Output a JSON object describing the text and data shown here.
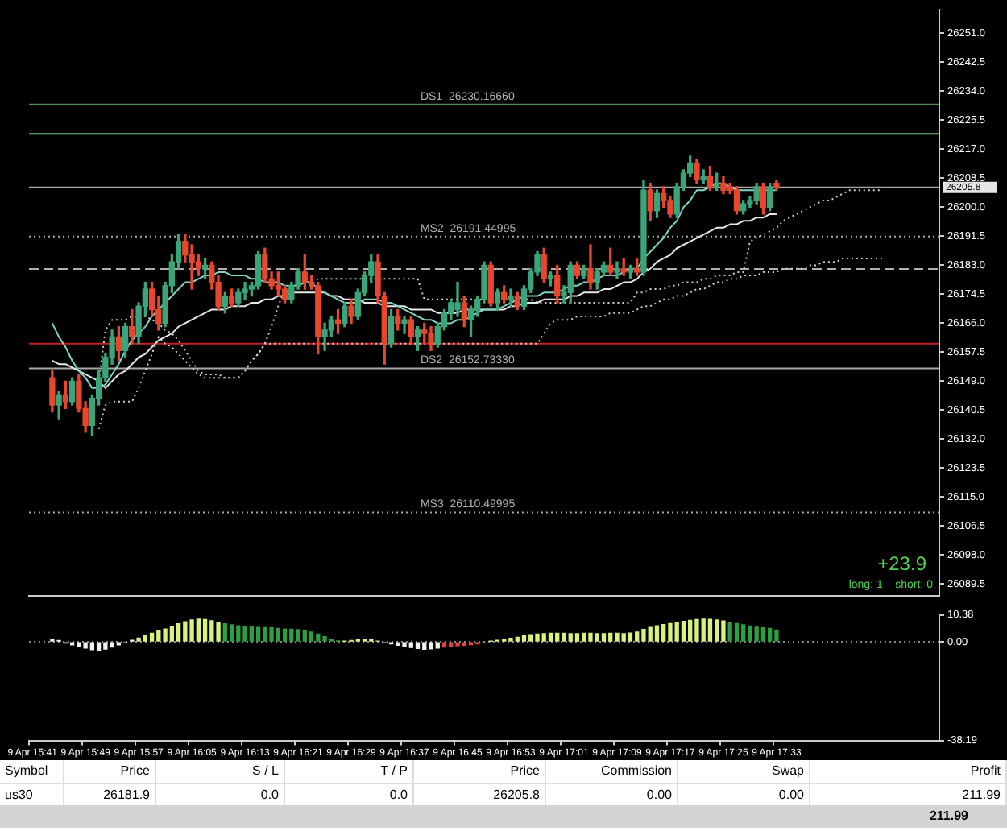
{
  "chart_data": [
    {
      "type": "candlestick",
      "tick_labels": "y",
      "ylim": [
        26086,
        26258
      ],
      "yticks": [
        {
          "value": 26251,
          "label": "26251.0"
        },
        26242.5,
        {
          "value": 26234,
          "label": "26234.0"
        },
        26225.5,
        {
          "value": 26217,
          "label": "26217.0"
        },
        26208.5,
        {
          "value": 26200,
          "label": "26200.0"
        },
        26191.5,
        {
          "value": 26183,
          "label": "26183.0"
        },
        26174.5,
        {
          "value": 26166,
          "label": "26166.0"
        },
        26157.5,
        {
          "value": 26149,
          "label": "26149.0"
        },
        26140.5,
        {
          "value": 26132,
          "label": "26132.0"
        },
        26123.5,
        {
          "value": 26115,
          "label": "26115.0"
        },
        26106.5,
        {
          "value": 26098,
          "label": "26098.0"
        },
        26089.5
      ],
      "categories": [
        null,
        null,
        null,
        null,
        null,
        null,
        null,
        null,
        null,
        null,
        null,
        null,
        null,
        null,
        null,
        null,
        null,
        null,
        null,
        null,
        null,
        null,
        null,
        null,
        null,
        null,
        null,
        null,
        null,
        null,
        null,
        null,
        null,
        null,
        null,
        null,
        null,
        null,
        null,
        null,
        null,
        null,
        null,
        null,
        null,
        null,
        null,
        null,
        null,
        null,
        null,
        null,
        null,
        null,
        null,
        null,
        null,
        null,
        null,
        null,
        null,
        null,
        null,
        null,
        null,
        null,
        null,
        null,
        null,
        null,
        null,
        null,
        null,
        null,
        null,
        null,
        null,
        null,
        null,
        null,
        null,
        null,
        null,
        null,
        null,
        null,
        null,
        null,
        null,
        null,
        null,
        null,
        null,
        null,
        null,
        null,
        null,
        null,
        null,
        null,
        null,
        null,
        null,
        null,
        null,
        null,
        null,
        null,
        null,
        null,
        null,
        null,
        null,
        null,
        null,
        null,
        null,
        null,
        null,
        null,
        null,
        null,
        null,
        null,
        null,
        null,
        null,
        null,
        null,
        null,
        null,
        null,
        null,
        null,
        null,
        null,
        null
      ],
      "ohlc": [
        null,
        null,
        null,
        [
          26150,
          26152,
          26140,
          26142
        ],
        [
          26142,
          26146,
          26138,
          26145
        ],
        [
          26145,
          26149,
          26141,
          26143
        ],
        [
          26143,
          26150,
          26142,
          26149
        ],
        [
          26149,
          26151,
          26140,
          26141
        ],
        [
          26141,
          26143,
          26134,
          26136
        ],
        [
          26136,
          26145,
          26133,
          26144
        ],
        [
          26144,
          26152,
          26142,
          26150
        ],
        [
          26150,
          26157,
          26149,
          26156
        ],
        [
          26156,
          26164,
          26154,
          26162
        ],
        [
          26162,
          26165,
          26155,
          26158
        ],
        [
          26158,
          26166,
          26156,
          26165
        ],
        [
          26165,
          26170,
          26160,
          26162
        ],
        [
          26162,
          26172,
          26160,
          26171
        ],
        [
          26171,
          26178,
          26168,
          26176
        ],
        [
          26176,
          26178,
          26168,
          26170
        ],
        [
          26170,
          26174,
          26164,
          26166
        ],
        [
          26166,
          26178,
          26165,
          26177
        ],
        [
          26177,
          26186,
          26175,
          26184
        ],
        [
          26184,
          26192,
          26182,
          26190
        ],
        [
          26190,
          26192,
          26184,
          26186
        ],
        [
          26186,
          26189,
          26176,
          26184
        ],
        [
          26184,
          26186,
          26180,
          26182
        ],
        [
          26182,
          26185,
          26179,
          26183
        ],
        [
          26183,
          26184,
          26176,
          26178
        ],
        [
          26178,
          26180,
          26170,
          26171
        ],
        [
          26171,
          26175,
          26169,
          26174
        ],
        [
          26174,
          26176,
          26171,
          26172
        ],
        [
          26172,
          26176,
          26171,
          26175
        ],
        [
          26175,
          26178,
          26173,
          26176
        ],
        [
          26176,
          26178,
          26174,
          26177
        ],
        [
          26177,
          26187,
          26176,
          26186
        ],
        [
          26186,
          26188,
          26178,
          26179
        ],
        [
          26179,
          26181,
          26176,
          26177
        ],
        [
          26177,
          26181,
          26174,
          26176
        ],
        [
          26176,
          26177,
          26172,
          26173
        ],
        [
          26173,
          26178,
          26172,
          26177
        ],
        [
          26177,
          26182,
          26176,
          26181
        ],
        [
          26181,
          26186,
          26176,
          26178
        ],
        [
          26178,
          26180,
          26176,
          26177
        ],
        [
          26177,
          26178,
          26157,
          26162
        ],
        [
          26162,
          26166,
          26158,
          26164
        ],
        [
          26164,
          26168,
          26162,
          26167
        ],
        [
          26167,
          26170,
          26163,
          26166
        ],
        [
          26166,
          26172,
          26165,
          26171
        ],
        [
          26171,
          26173,
          26166,
          26168
        ],
        [
          26168,
          26176,
          26167,
          26175
        ],
        [
          26175,
          26181,
          26174,
          26180
        ],
        [
          26180,
          26186,
          26178,
          26184
        ],
        [
          26184,
          26186,
          26172,
          26174
        ],
        [
          26174,
          26175,
          26154,
          26160
        ],
        [
          26160,
          26170,
          26159,
          26168
        ],
        [
          26168,
          26170,
          26164,
          26166
        ],
        [
          26166,
          26168,
          26163,
          26167
        ],
        [
          26167,
          26168,
          26160,
          26162
        ],
        [
          26162,
          26165,
          26158,
          26164
        ],
        [
          26164,
          26166,
          26160,
          26163
        ],
        [
          26163,
          26165,
          26158,
          26160
        ],
        [
          26160,
          26166,
          26159,
          26165
        ],
        [
          26165,
          26170,
          26164,
          26169
        ],
        [
          26169,
          26173,
          26167,
          26172
        ],
        [
          26170,
          26178,
          26168,
          26172
        ],
        [
          26172,
          26174,
          26165,
          26167
        ],
        [
          26167,
          26171,
          26162,
          26170
        ],
        [
          26170,
          26174,
          26168,
          26173
        ],
        [
          26173,
          26184,
          26172,
          26183
        ],
        [
          26183,
          26184,
          26171,
          26172
        ],
        [
          26172,
          26176,
          26170,
          26175
        ],
        [
          26175,
          26177,
          26172,
          26173
        ],
        [
          26173,
          26176,
          26171,
          26174
        ],
        [
          26174,
          26175,
          26170,
          26171
        ],
        [
          26171,
          26177,
          26170,
          26176
        ],
        [
          26176,
          26182,
          26175,
          26181
        ],
        [
          26181,
          26187,
          26180,
          26186
        ],
        [
          26186,
          26188,
          26178,
          26179
        ],
        [
          26179,
          26181,
          26177,
          26180
        ],
        [
          26180,
          26183,
          26172,
          26174
        ],
        [
          26174,
          26177,
          26172,
          26175
        ],
        [
          26175,
          26184,
          26172,
          26183
        ],
        [
          26183,
          26184,
          26179,
          26180
        ],
        [
          26180,
          26183,
          26179,
          26182
        ],
        [
          26182,
          26189,
          26176,
          26178
        ],
        [
          26178,
          26182,
          26176,
          26181
        ],
        [
          26181,
          26184,
          26180,
          26183
        ],
        [
          26183,
          26188,
          26180,
          26181
        ],
        [
          26181,
          26184,
          26179,
          26182
        ],
        [
          26182,
          26185,
          26180,
          26181
        ],
        [
          26181,
          26183,
          26179,
          26182
        ],
        [
          26182,
          26185,
          26180,
          26181
        ],
        [
          26181,
          26208,
          26180,
          26205
        ],
        [
          26205,
          26207,
          26196,
          26199
        ],
        [
          26199,
          26205,
          26197,
          26204
        ],
        [
          26204,
          26206,
          26200,
          26202
        ],
        [
          26202,
          26203,
          26197,
          26198
        ],
        [
          26198,
          26207,
          26197,
          26206
        ],
        [
          26206,
          26211,
          26205,
          26210
        ],
        [
          26210,
          26215,
          26209,
          26213
        ],
        [
          26213,
          26214,
          26207,
          26208
        ],
        [
          26208,
          26211,
          26207,
          26209
        ],
        [
          26209,
          26212,
          26205,
          26206
        ],
        [
          26206,
          26210,
          26205,
          26207
        ],
        [
          26207,
          26209,
          26204,
          26205
        ],
        [
          26206,
          26207,
          26204,
          26205
        ],
        [
          26205,
          26206,
          26198,
          26199
        ],
        [
          26199,
          26202,
          26198,
          26201
        ],
        [
          26201,
          26203,
          26200,
          26202
        ],
        [
          26202,
          26207,
          26201,
          26206
        ],
        [
          26206,
          26207,
          26198,
          26200
        ],
        [
          26200,
          26207,
          26199,
          26206
        ],
        [
          26207,
          26208,
          26205,
          26205.8
        ],
        null,
        null,
        null,
        null,
        null,
        null,
        null,
        null,
        null,
        null,
        null,
        null,
        null,
        null,
        null,
        null,
        null,
        null,
        null,
        null,
        null,
        null,
        null,
        null
      ],
      "series": [
        {
          "type": "line",
          "color": "#7fd6c4",
          "values": [
            null,
            null,
            null,
            26166,
            26162,
            26159,
            26155,
            26152,
            26150,
            26147,
            26147,
            26148,
            26151,
            26154,
            26158,
            26161,
            26163,
            26165,
            26168,
            26170,
            26172,
            26174,
            26176,
            26178,
            26178,
            26179,
            26180,
            26180,
            26181,
            26181,
            26180,
            26180,
            26180,
            26179,
            26179,
            26178,
            26178,
            26178,
            26177,
            26177,
            26177,
            26178,
            26178,
            26176,
            26175,
            26174,
            26173,
            26172,
            26172,
            26172,
            26173,
            26173,
            26173,
            26172,
            26172,
            26171,
            26170,
            26169,
            26168,
            26167,
            26167,
            26166,
            26166,
            26166,
            26167,
            26167,
            26168,
            26169,
            26170,
            26170,
            26170,
            26171,
            26172,
            26173,
            26174,
            26174,
            26174,
            26175,
            26175,
            26175,
            26176,
            26177,
            26177,
            26178,
            26178,
            26179,
            26180,
            26180,
            26180,
            26181,
            26182,
            26182,
            26185,
            26187,
            26189,
            26191,
            26194,
            26196,
            26200,
            26202,
            26205,
            26205,
            26206,
            26207,
            26207,
            26206,
            26205,
            26205,
            26205,
            26205,
            26205,
            26205,
            26205,
            null,
            null,
            null,
            null,
            null,
            null,
            null,
            null,
            null,
            null,
            null,
            null,
            null,
            null,
            null,
            null,
            null,
            null,
            null,
            null,
            null,
            null,
            null,
            null
          ]
        },
        {
          "type": "line",
          "color": "#e6e6e6",
          "values": [
            null,
            null,
            null,
            26155,
            26154,
            26154,
            26153,
            26152,
            26151,
            26150,
            26149,
            26147,
            26149,
            26151,
            26152,
            26154,
            26156,
            26157,
            26159,
            26161,
            26162,
            26163,
            26165,
            26166,
            26167,
            26168,
            26169,
            26170,
            26170,
            26170,
            26171,
            26171,
            26171,
            26172,
            26172,
            26173,
            26173,
            26174,
            26174,
            26175,
            26175,
            26175,
            26175,
            26175,
            26175,
            26174,
            26174,
            26173,
            26173,
            26173,
            26172,
            26172,
            26172,
            26171,
            26171,
            26171,
            26171,
            26170,
            26170,
            26170,
            26170,
            26169,
            26169,
            26169,
            26169,
            26170,
            26170,
            26170,
            26170,
            26170,
            26170,
            26170,
            26171,
            26171,
            26172,
            26172,
            26172,
            26173,
            26173,
            26173,
            26173,
            26174,
            26174,
            26175,
            26175,
            26175,
            26176,
            26176,
            26177,
            26178,
            26178,
            26179,
            26181,
            26182,
            26184,
            26185,
            26186,
            26188,
            26189,
            26190,
            26191,
            26192,
            26193,
            26194,
            26194,
            26195,
            26195,
            26196,
            26196,
            26197,
            26197,
            26198,
            26198,
            null,
            null,
            null,
            null,
            null,
            null,
            null,
            null,
            null,
            null,
            null,
            null,
            null,
            null,
            null,
            null,
            null,
            null,
            null,
            null,
            null,
            null,
            null,
            null
          ]
        },
        {
          "type": "line",
          "color": "#d0d0d0",
          "line_style": "dotted",
          "values": [
            null,
            null,
            null,
            null,
            null,
            null,
            null,
            null,
            null,
            null,
            26149,
            26164,
            26167,
            26167,
            26167,
            26168,
            26168,
            26168,
            26167,
            26166,
            26164,
            26163,
            26161,
            26158,
            26155,
            26152,
            26151,
            26151,
            26151,
            26150,
            26150,
            26150,
            26152,
            26155,
            26157,
            26160,
            26165,
            26171,
            26176,
            26177,
            26177,
            26178,
            26178,
            26179,
            26179,
            26179,
            26179,
            26179,
            26179,
            26179,
            26179,
            26179,
            26179,
            26179,
            26179,
            26179,
            26179,
            26179,
            26179,
            26173,
            26173,
            26173,
            26173,
            26173,
            26173,
            26173,
            26173,
            26173,
            26173,
            null,
            26173,
            26173,
            26173,
            26173,
            26173,
            26173,
            26172,
            26172,
            26172,
            26172,
            26172,
            26172,
            26172,
            26172,
            26172,
            26172,
            26172,
            26172,
            26172,
            26172,
            26172,
            26175,
            26175,
            26176,
            26176,
            26176,
            26177,
            26177,
            26178,
            26178,
            26178,
            26179,
            26179,
            26180,
            26180,
            26180,
            26181,
            26181,
            26190,
            26191,
            26192,
            26193,
            26194,
            26196,
            26197,
            26198,
            26199,
            26200,
            26201,
            26202,
            26202,
            26203,
            26204,
            26205,
            26205,
            26205,
            26205,
            26205,
            26205,
            null,
            null,
            null,
            null,
            null,
            null,
            null,
            null
          ]
        },
        {
          "type": "line",
          "color": "#d0d0d0",
          "line_style": "dotted",
          "values": [
            null,
            null,
            null,
            null,
            null,
            null,
            null,
            null,
            null,
            null,
            26135,
            26142,
            26143,
            26143,
            26143,
            26143,
            26147,
            26152,
            26157,
            26162,
            26160,
            26159,
            26157,
            26155,
            26153,
            26151,
            26150,
            26150,
            26150,
            26150,
            26150,
            26150,
            26152,
            26155,
            26157,
            26160,
            26160,
            26160,
            26160,
            26160,
            26160,
            26160,
            26160,
            26160,
            26160,
            26160,
            26160,
            26160,
            26160,
            26160,
            26160,
            26160,
            26160,
            26160,
            26160,
            26160,
            26160,
            26160,
            26160,
            26160,
            26160,
            26160,
            26160,
            26160,
            26160,
            26160,
            26160,
            26160,
            26160,
            26160,
            26160,
            26160,
            26160,
            26160,
            26160,
            26160,
            26160,
            26163,
            26166,
            26167,
            26167,
            26167,
            26168,
            26168,
            26168,
            26168,
            26168,
            26169,
            26169,
            26169,
            26169,
            26170,
            26171,
            26171,
            26172,
            26173,
            26173,
            26174,
            26174,
            26175,
            26176,
            26176,
            26177,
            26178,
            26178,
            26179,
            26179,
            26180,
            26180,
            26180,
            26181,
            26181,
            26181,
            26182,
            26182,
            26182,
            26182,
            26183,
            26183,
            26184,
            26184,
            26184,
            26185,
            26185,
            26185,
            26185,
            26185,
            26185,
            26185,
            null,
            null,
            null,
            null,
            null,
            null,
            null,
            null
          ]
        }
      ],
      "ref_lines": [
        {
          "axis": "y",
          "value": 26230.1666,
          "label": "DS1  26230.16660",
          "color": "#4f8f4f",
          "line_style": "solid"
        },
        {
          "axis": "y",
          "value": 26221.5,
          "color": "#6fc46f",
          "line_style": "solid"
        },
        {
          "axis": "y",
          "value": 26205.8,
          "label": "26205.8",
          "color": "#a8a8a8",
          "line_style": "solid"
        },
        {
          "axis": "y",
          "value": 26191.44995,
          "label": "MS2  26191.44995",
          "color": "#a8a8a8",
          "line_style": "dotted"
        },
        {
          "axis": "y",
          "value": 26181.9,
          "color": "#b0b0b0",
          "line_style": "dashed"
        },
        {
          "axis": "y",
          "value": 26160,
          "color": "#c42020",
          "line_style": "solid"
        },
        {
          "axis": "y",
          "value": 26152.7333,
          "label": "DS2  26152.73330",
          "color": "#a8a8a8",
          "line_style": "solid"
        },
        {
          "axis": "y",
          "value": 26110.49995,
          "label": "MS3  26110.49995",
          "color": "#a8a8a8",
          "line_style": "dotted"
        }
      ],
      "annotations": [
        "+23.9",
        "long: 1    short: 0"
      ]
    },
    {
      "type": "bar",
      "ylim": [
        -38.19,
        10.38
      ],
      "yticks": [
        {
          "value": 10.38,
          "label": "10.38"
        },
        {
          "value": 0,
          "label": "0.00"
        },
        {
          "value": -38.19,
          "label": "-38.19"
        }
      ],
      "categories": [
        "9 Apr 15:41",
        null,
        null,
        null,
        null,
        null,
        null,
        null,
        "9 Apr 15:49",
        null,
        null,
        null,
        null,
        null,
        null,
        null,
        "9 Apr 15:57",
        null,
        null,
        null,
        null,
        null,
        null,
        null,
        "9 Apr 16:05",
        null,
        null,
        null,
        null,
        null,
        null,
        null,
        "9 Apr 16:13",
        null,
        null,
        null,
        null,
        null,
        null,
        null,
        "9 Apr 16:21",
        null,
        null,
        null,
        null,
        null,
        null,
        null,
        "9 Apr 16:29",
        null,
        null,
        null,
        null,
        null,
        null,
        null,
        "9 Apr 16:37",
        null,
        null,
        null,
        null,
        null,
        null,
        null,
        "9 Apr 16:45",
        null,
        null,
        null,
        null,
        null,
        null,
        null,
        "9 Apr 16:53",
        null,
        null,
        null,
        null,
        null,
        null,
        null,
        "9 Apr 17:01",
        null,
        null,
        null,
        null,
        null,
        null,
        null,
        "9 Apr 17:09",
        null,
        null,
        null,
        null,
        null,
        null,
        null,
        "9 Apr 17:17",
        null,
        null,
        null,
        null,
        null,
        null,
        null,
        "9 Apr 17:25",
        null,
        null,
        null,
        null,
        null,
        null,
        null,
        "9 Apr 17:33",
        null,
        null,
        null,
        null,
        null,
        null,
        null,
        null,
        null,
        null,
        null,
        null,
        null,
        null,
        null,
        null,
        null,
        null,
        null,
        null,
        null,
        null,
        null,
        null
      ],
      "values": [
        null,
        null,
        null,
        1,
        0.5,
        -0.5,
        -1.2,
        -1.8,
        -2.4,
        -3,
        -3.3,
        -2.8,
        -2,
        -1.2,
        -0.3,
        0.6,
        1.5,
        2.5,
        3.3,
        4.2,
        5,
        6,
        7,
        7.8,
        8.5,
        8.8,
        8.6,
        8.2,
        7.6,
        7,
        6.6,
        6.2,
        6,
        5.8,
        5.6,
        5.5,
        5.4,
        5.2,
        5,
        4.9,
        4.7,
        4.4,
        3.8,
        3,
        2,
        1,
        0.4,
        0.2,
        0.5,
        0.8,
        1,
        0.8,
        0.3,
        -0.3,
        -0.8,
        -1.3,
        -1.8,
        -2.2,
        -2.6,
        -2.9,
        -2.7,
        -2.4,
        -2,
        -1.7,
        -1.5,
        -1.3,
        -1.1,
        -0.8,
        -0.3,
        0.2,
        0.6,
        1,
        1.4,
        1.8,
        2.3,
        2.8,
        3,
        3.2,
        3.3,
        3.3,
        3.3,
        3.2,
        3.2,
        3.3,
        3.3,
        3.2,
        3.2,
        3.3,
        3.3,
        3.2,
        3.4,
        3.8,
        4.8,
        5.6,
        6.2,
        6.7,
        7.1,
        7.5,
        7.9,
        8.3,
        8.6,
        8.8,
        8.7,
        8.5,
        8.1,
        7.6,
        7.1,
        6.6,
        6.1,
        5.7,
        5.4,
        5.2,
        4.6,
        null,
        null,
        null,
        null,
        null,
        null,
        null,
        null,
        null,
        null,
        null,
        null,
        null,
        null,
        null,
        null,
        null,
        null,
        null,
        null,
        null,
        null,
        null,
        null
      ],
      "colors": [
        null,
        null,
        null,
        "#f2f2f2",
        "#f2f2f2",
        "#f2f2f2",
        "#f2f2f2",
        "#f2f2f2",
        "#f2f2f2",
        "#f2f2f2",
        "#f2f2f2",
        "#f2f2f2",
        "#f2f2f2",
        "#f2f2f2",
        "#f2f2f2",
        "#f2f2f2",
        "#d9f27e",
        "#d9f27e",
        "#d9f27e",
        "#d9f27e",
        "#d9f27e",
        "#d9f27e",
        "#d9f27e",
        "#d9f27e",
        "#d9f27e",
        "#d9f27e",
        "#d9f27e",
        "#d9f27e",
        "#d9f27e",
        "#2e9e3e",
        "#2e9e3e",
        "#2e9e3e",
        "#2e9e3e",
        "#2e9e3e",
        "#2e9e3e",
        "#2e9e3e",
        "#2e9e3e",
        "#2e9e3e",
        "#2e9e3e",
        "#2e9e3e",
        "#2e9e3e",
        "#2e9e3e",
        "#2e9e3e",
        "#2e9e3e",
        "#2e9e3e",
        "#2e9e3e",
        "#2e9e3e",
        "#d9f27e",
        "#d9f27e",
        "#d9f27e",
        "#d9f27e",
        "#d9f27e",
        "#d9f27e",
        "#f2f2f2",
        "#f2f2f2",
        "#f2f2f2",
        "#f2f2f2",
        "#f2f2f2",
        "#f2f2f2",
        "#f2f2f2",
        "#f2f2f2",
        "#f2f2f2",
        "#e04848",
        "#e04848",
        "#e04848",
        "#e04848",
        "#e04848",
        "#e04848",
        "#e04848",
        "#d9f27e",
        "#d9f27e",
        "#d9f27e",
        "#d9f27e",
        "#d9f27e",
        "#d9f27e",
        "#d9f27e",
        "#d9f27e",
        "#d9f27e",
        "#d9f27e",
        "#d9f27e",
        "#d9f27e",
        "#d9f27e",
        "#d9f27e",
        "#d9f27e",
        "#d9f27e",
        "#d9f27e",
        "#d9f27e",
        "#d9f27e",
        "#d9f27e",
        "#d9f27e",
        "#d9f27e",
        "#d9f27e",
        "#d9f27e",
        "#d9f27e",
        "#d9f27e",
        "#d9f27e",
        "#d9f27e",
        "#d9f27e",
        "#d9f27e",
        "#d9f27e",
        "#d9f27e",
        "#d9f27e",
        "#d9f27e",
        "#d9f27e",
        "#d9f27e",
        "#2e9e3e",
        "#2e9e3e",
        "#2e9e3e",
        "#2e9e3e",
        "#2e9e3e",
        "#2e9e3e",
        "#2e9e3e",
        "#2e9e3e",
        null,
        null,
        null,
        null,
        null,
        null,
        null,
        null,
        null,
        null,
        null,
        null,
        null,
        null,
        null,
        null,
        null,
        null,
        null,
        null,
        null,
        null,
        null,
        null
      ],
      "ref_lines": [
        {
          "axis": "y",
          "value": 0,
          "color": "#888888",
          "line_style": "dotted"
        }
      ]
    },
    {
      "type": "other",
      "annotations": [
        "Symbol",
        "Price",
        "S / L",
        "T / P",
        "Price",
        "Commission",
        "Swap",
        "Profit",
        "us30",
        "26181.9",
        "0.0",
        "0.0",
        "26205.8",
        "0.00",
        "0.00",
        "211.99",
        "211.99"
      ]
    }
  ]
}
